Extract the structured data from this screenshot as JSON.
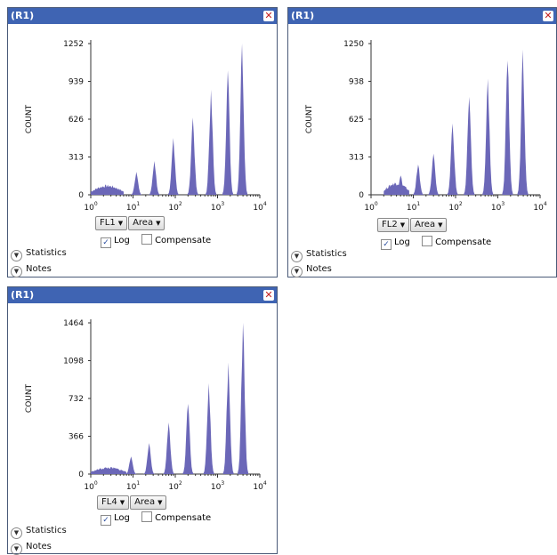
{
  "panels": [
    {
      "title": "(R1)",
      "channel": "FL1",
      "measure": "Area",
      "log_label": "Log",
      "log_checked": true,
      "compensate_label": "Compensate",
      "compensate_checked": false,
      "statistics_label": "Statistics",
      "notes_label": "Notes"
    },
    {
      "title": "(R1)",
      "channel": "FL2",
      "measure": "Area",
      "log_label": "Log",
      "log_checked": true,
      "compensate_label": "Compensate",
      "compensate_checked": false,
      "statistics_label": "Statistics",
      "notes_label": "Notes"
    },
    {
      "title": "(R1)",
      "channel": "FL4",
      "measure": "Area",
      "log_label": "Log",
      "log_checked": true,
      "compensate_label": "Compensate",
      "compensate_checked": false,
      "statistics_label": "Statistics",
      "notes_label": "Notes"
    }
  ],
  "chart_data": [
    {
      "type": "area",
      "ylabel": "COUNT",
      "xscale": "log",
      "xlim": [
        1,
        10000
      ],
      "xticks": [
        "10^0",
        "10^1",
        "10^2",
        "10^3",
        "10^4"
      ],
      "yticks": [
        0,
        313,
        626,
        939,
        1252
      ],
      "ylim": [
        0,
        1252
      ],
      "series_color": "#6b67b8",
      "noise_band": {
        "from": 1,
        "to": 6,
        "height": 85
      },
      "peaks": [
        {
          "x": 12,
          "y": 190
        },
        {
          "x": 32,
          "y": 280
        },
        {
          "x": 90,
          "y": 470
        },
        {
          "x": 260,
          "y": 640
        },
        {
          "x": 700,
          "y": 870
        },
        {
          "x": 1750,
          "y": 1030
        },
        {
          "x": 3800,
          "y": 1252
        }
      ]
    },
    {
      "type": "area",
      "ylabel": "COUNT",
      "xscale": "log",
      "xlim": [
        1,
        10000
      ],
      "xticks": [
        "10^0",
        "10^1",
        "10^2",
        "10^3",
        "10^4"
      ],
      "yticks": [
        0,
        313,
        625,
        938,
        1250
      ],
      "ylim": [
        0,
        1250
      ],
      "series_color": "#6b67b8",
      "noise_band": {
        "from": 2,
        "to": 8,
        "height": 110
      },
      "peaks": [
        {
          "x": 5,
          "y": 160
        },
        {
          "x": 13,
          "y": 250
        },
        {
          "x": 30,
          "y": 340
        },
        {
          "x": 85,
          "y": 590
        },
        {
          "x": 210,
          "y": 810
        },
        {
          "x": 580,
          "y": 960
        },
        {
          "x": 1700,
          "y": 1110
        },
        {
          "x": 3900,
          "y": 1200
        }
      ]
    },
    {
      "type": "area",
      "ylabel": "COUNT",
      "xscale": "log",
      "xlim": [
        1,
        10000
      ],
      "xticks": [
        "10^0",
        "10^1",
        "10^2",
        "10^3",
        "10^4"
      ],
      "yticks": [
        0,
        366,
        732,
        1098,
        1464
      ],
      "ylim": [
        0,
        1464
      ],
      "series_color": "#6b67b8",
      "noise_band": {
        "from": 1,
        "to": 7,
        "height": 70
      },
      "peaks": [
        {
          "x": 9,
          "y": 170
        },
        {
          "x": 24,
          "y": 300
        },
        {
          "x": 70,
          "y": 500
        },
        {
          "x": 200,
          "y": 680
        },
        {
          "x": 620,
          "y": 880
        },
        {
          "x": 1800,
          "y": 1080
        },
        {
          "x": 4000,
          "y": 1464
        }
      ]
    }
  ]
}
